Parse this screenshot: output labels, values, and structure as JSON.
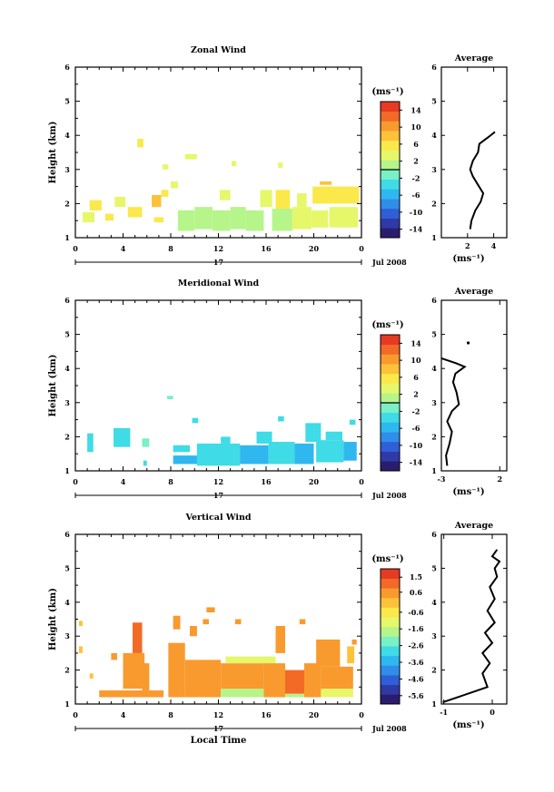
{
  "chart_data": [
    {
      "type": "heatmap",
      "title": "Zonal Wind",
      "ylabel": "Height (km)",
      "xticks": [
        "0",
        "4",
        "8",
        "12",
        "16",
        "20",
        "0"
      ],
      "yticks": [
        "1",
        "2",
        "3",
        "4",
        "5",
        "6"
      ],
      "xlim": [
        0,
        24
      ],
      "ylim": [
        1,
        6
      ],
      "day_label": "17",
      "date_label": "Jul 2008",
      "colorbar": {
        "unit": "(ms⁻¹)",
        "ticks": [
          "14",
          "10",
          "6",
          "2",
          "-2",
          "-6",
          "-10",
          "-14"
        ],
        "range": [
          -16,
          16
        ],
        "zero_line": 0
      },
      "cells": [
        {
          "t0": 0.6,
          "t1": 1.6,
          "h0": 1.45,
          "h1": 1.75,
          "v": 4
        },
        {
          "t0": 1.2,
          "t1": 2.2,
          "h0": 1.8,
          "h1": 2.1,
          "v": 5
        },
        {
          "t0": 2.5,
          "t1": 3.2,
          "h0": 1.5,
          "h1": 1.7,
          "v": 5
        },
        {
          "t0": 3.3,
          "t1": 4.2,
          "h0": 1.9,
          "h1": 2.2,
          "v": 4
        },
        {
          "t0": 4.4,
          "t1": 5.6,
          "h0": 1.6,
          "h1": 1.9,
          "v": 6
        },
        {
          "t0": 5.2,
          "t1": 5.7,
          "h0": 3.65,
          "h1": 3.9,
          "v": 6
        },
        {
          "t0": 6.4,
          "t1": 7.2,
          "h0": 1.9,
          "h1": 2.25,
          "v": 7
        },
        {
          "t0": 6.6,
          "t1": 7.4,
          "h0": 1.45,
          "h1": 1.6,
          "v": 5
        },
        {
          "t0": 7.2,
          "t1": 7.8,
          "h0": 2.2,
          "h1": 2.4,
          "v": 6
        },
        {
          "t0": 7.3,
          "t1": 7.8,
          "h0": 3.0,
          "h1": 3.15,
          "v": 3
        },
        {
          "t0": 8.0,
          "t1": 8.6,
          "h0": 2.45,
          "h1": 2.65,
          "v": 4
        },
        {
          "t0": 8.6,
          "t1": 10.0,
          "h0": 1.2,
          "h1": 1.8,
          "v": 1
        },
        {
          "t0": 9.2,
          "t1": 10.2,
          "h0": 3.3,
          "h1": 3.45,
          "v": 3
        },
        {
          "t0": 10.0,
          "t1": 11.5,
          "h0": 1.25,
          "h1": 1.9,
          "v": 2
        },
        {
          "t0": 11.5,
          "t1": 13.0,
          "h0": 1.2,
          "h1": 1.8,
          "v": 1
        },
        {
          "t0": 12.1,
          "t1": 13.0,
          "h0": 2.1,
          "h1": 2.4,
          "v": 3
        },
        {
          "t0": 13.0,
          "t1": 14.3,
          "h0": 1.25,
          "h1": 1.9,
          "v": 0
        },
        {
          "t0": 13.1,
          "t1": 13.5,
          "h0": 3.1,
          "h1": 3.25,
          "v": 3
        },
        {
          "t0": 14.3,
          "t1": 15.8,
          "h0": 1.2,
          "h1": 1.8,
          "v": 1
        },
        {
          "t0": 15.5,
          "t1": 16.5,
          "h0": 1.9,
          "h1": 2.4,
          "v": 4
        },
        {
          "t0": 16.5,
          "t1": 18.2,
          "h0": 1.2,
          "h1": 1.85,
          "v": 2
        },
        {
          "t0": 16.8,
          "t1": 18.0,
          "h0": 1.85,
          "h1": 2.4,
          "v": 5
        },
        {
          "t0": 17.0,
          "t1": 17.4,
          "h0": 3.05,
          "h1": 3.2,
          "v": 3
        },
        {
          "t0": 18.2,
          "t1": 19.8,
          "h0": 1.25,
          "h1": 1.9,
          "v": 3
        },
        {
          "t0": 18.6,
          "t1": 19.4,
          "h0": 1.9,
          "h1": 2.3,
          "v": 4
        },
        {
          "t0": 19.8,
          "t1": 21.2,
          "h0": 1.3,
          "h1": 1.8,
          "v": 4
        },
        {
          "t0": 19.9,
          "t1": 21.6,
          "h0": 2.0,
          "h1": 2.5,
          "v": 6
        },
        {
          "t0": 20.5,
          "t1": 21.5,
          "h0": 2.55,
          "h1": 2.65,
          "v": 7
        },
        {
          "t0": 21.3,
          "t1": 23.7,
          "h0": 1.3,
          "h1": 1.9,
          "v": 4
        },
        {
          "t0": 21.6,
          "t1": 23.8,
          "h0": 2.0,
          "h1": 2.5,
          "v": 5
        }
      ],
      "profile": {
        "title": "Average",
        "xticks": [
          "2",
          "4"
        ],
        "xlim": [
          0,
          5
        ],
        "unit": "(ms⁻¹)",
        "points": [
          [
            2.2,
            1.25
          ],
          [
            2.3,
            1.5
          ],
          [
            2.6,
            1.8
          ],
          [
            3.0,
            2.05
          ],
          [
            3.2,
            2.3
          ],
          [
            2.8,
            2.55
          ],
          [
            2.4,
            2.8
          ],
          [
            2.2,
            3.0
          ],
          [
            2.4,
            3.25
          ],
          [
            2.8,
            3.5
          ],
          [
            2.9,
            3.75
          ],
          [
            3.6,
            3.95
          ],
          [
            4.1,
            4.1
          ]
        ]
      }
    },
    {
      "type": "heatmap",
      "title": "Meridional Wind",
      "ylabel": "Height (km)",
      "xticks": [
        "0",
        "4",
        "8",
        "12",
        "16",
        "20",
        "0"
      ],
      "yticks": [
        "1",
        "2",
        "3",
        "4",
        "5",
        "6"
      ],
      "xlim": [
        0,
        24
      ],
      "ylim": [
        1,
        6
      ],
      "day_label": "17",
      "date_label": "Jul 2008",
      "colorbar": {
        "unit": "(ms⁻¹)",
        "ticks": [
          "14",
          "10",
          "6",
          "2",
          "-2",
          "-6",
          "-10",
          "-14"
        ],
        "range": [
          -16,
          16
        ],
        "zero_line": 0
      },
      "cells": [
        {
          "t0": 1.0,
          "t1": 1.5,
          "h0": 1.55,
          "h1": 2.1,
          "v": -3
        },
        {
          "t0": 3.2,
          "t1": 4.6,
          "h0": 1.7,
          "h1": 2.25,
          "v": -3
        },
        {
          "t0": 5.6,
          "t1": 6.2,
          "h0": 1.7,
          "h1": 1.95,
          "v": -2
        },
        {
          "t0": 5.7,
          "t1": 6.0,
          "h0": 1.15,
          "h1": 1.3,
          "v": -3
        },
        {
          "t0": 7.7,
          "t1": 8.2,
          "h0": 3.1,
          "h1": 3.2,
          "v": -2
        },
        {
          "t0": 8.2,
          "t1": 9.6,
          "h0": 1.55,
          "h1": 1.75,
          "v": -4
        },
        {
          "t0": 8.2,
          "t1": 10.5,
          "h0": 1.2,
          "h1": 1.45,
          "v": -5
        },
        {
          "t0": 9.8,
          "t1": 10.3,
          "h0": 2.4,
          "h1": 2.55,
          "v": -3
        },
        {
          "t0": 10.2,
          "t1": 13.8,
          "h0": 1.15,
          "h1": 1.8,
          "v": -4
        },
        {
          "t0": 12.2,
          "t1": 13.0,
          "h0": 1.8,
          "h1": 2.0,
          "v": -3
        },
        {
          "t0": 13.8,
          "t1": 16.2,
          "h0": 1.2,
          "h1": 1.75,
          "v": -5
        },
        {
          "t0": 15.2,
          "t1": 16.5,
          "h0": 1.8,
          "h1": 2.15,
          "v": -3
        },
        {
          "t0": 16.2,
          "t1": 18.4,
          "h0": 1.2,
          "h1": 1.85,
          "v": -4
        },
        {
          "t0": 17.0,
          "t1": 17.5,
          "h0": 2.45,
          "h1": 2.6,
          "v": -3
        },
        {
          "t0": 18.4,
          "t1": 20.0,
          "h0": 1.2,
          "h1": 1.8,
          "v": -5
        },
        {
          "t0": 19.3,
          "t1": 20.6,
          "h0": 1.85,
          "h1": 2.4,
          "v": -3
        },
        {
          "t0": 20.2,
          "t1": 22.5,
          "h0": 1.25,
          "h1": 1.9,
          "v": -4
        },
        {
          "t0": 21.0,
          "t1": 22.4,
          "h0": 1.9,
          "h1": 2.15,
          "v": -3
        },
        {
          "t0": 22.5,
          "t1": 23.6,
          "h0": 1.3,
          "h1": 1.85,
          "v": -5
        },
        {
          "t0": 23.0,
          "t1": 23.5,
          "h0": 2.35,
          "h1": 2.5,
          "v": -3
        }
      ],
      "profile": {
        "title": "Average",
        "xticks": [
          "-3",
          "2"
        ],
        "xlim": [
          -3,
          2.6
        ],
        "unit": "(ms⁻¹)",
        "points": [
          [
            -2.5,
            1.15
          ],
          [
            -2.6,
            1.45
          ],
          [
            -2.3,
            1.8
          ],
          [
            -2.1,
            2.15
          ],
          [
            -2.5,
            2.45
          ],
          [
            -2.1,
            2.75
          ],
          [
            -1.5,
            2.95
          ],
          [
            -1.7,
            3.3
          ],
          [
            -2.0,
            3.6
          ],
          [
            -1.8,
            3.85
          ],
          [
            -1.0,
            4.05
          ],
          [
            -1.7,
            4.15
          ],
          [
            -3.0,
            4.3
          ]
        ],
        "extra_points": [
          [
            -0.7,
            4.75
          ]
        ]
      }
    },
    {
      "type": "heatmap",
      "title": "Vertical Wind",
      "ylabel": "Height (km)",
      "xlabel": "Local Time",
      "xticks": [
        "0",
        "4",
        "8",
        "12",
        "16",
        "20",
        "0"
      ],
      "yticks": [
        "1",
        "2",
        "3",
        "4",
        "5",
        "6"
      ],
      "xlim": [
        0,
        24
      ],
      "ylim": [
        1,
        6
      ],
      "day_label": "17",
      "date_label": "Jul 2008",
      "colorbar": {
        "unit": "(ms⁻¹)",
        "ticks": [
          "1.5",
          "0.6",
          "-0.6",
          "-1.6",
          "-2.6",
          "-3.6",
          "-4.6",
          "-5.6"
        ],
        "range": [
          -6.1,
          2.0
        ]
      },
      "cells": [
        {
          "t0": 0.3,
          "t1": 0.6,
          "h0": 3.3,
          "h1": 3.45,
          "v": 0.2
        },
        {
          "t0": 0.3,
          "t1": 0.6,
          "h0": 2.5,
          "h1": 2.7,
          "v": 0.2
        },
        {
          "t0": 1.2,
          "t1": 1.5,
          "h0": 1.75,
          "h1": 1.9,
          "v": 0.2
        },
        {
          "t0": 2.0,
          "t1": 7.4,
          "h0": 1.2,
          "h1": 1.4,
          "v": 0.5
        },
        {
          "t0": 3.0,
          "t1": 3.5,
          "h0": 2.3,
          "h1": 2.5,
          "v": 0.3
        },
        {
          "t0": 4.0,
          "t1": 5.8,
          "h0": 1.45,
          "h1": 2.5,
          "v": 0.4
        },
        {
          "t0": 4.8,
          "t1": 5.6,
          "h0": 2.5,
          "h1": 3.4,
          "v": 0.9
        },
        {
          "t0": 5.6,
          "t1": 6.2,
          "h0": 1.4,
          "h1": 2.2,
          "v": 0.5
        },
        {
          "t0": 7.8,
          "t1": 9.2,
          "h0": 1.2,
          "h1": 2.8,
          "v": 0.5
        },
        {
          "t0": 8.2,
          "t1": 8.8,
          "h0": 3.2,
          "h1": 3.6,
          "v": 0.3
        },
        {
          "t0": 9.2,
          "t1": 12.2,
          "h0": 1.2,
          "h1": 2.3,
          "v": 0.6
        },
        {
          "t0": 9.6,
          "t1": 10.2,
          "h0": 3.0,
          "h1": 3.3,
          "v": 0.3
        },
        {
          "t0": 10.7,
          "t1": 11.2,
          "h0": 3.35,
          "h1": 3.5,
          "v": 0.3
        },
        {
          "t0": 11.0,
          "t1": 11.7,
          "h0": 3.7,
          "h1": 3.85,
          "v": 0.3
        },
        {
          "t0": 12.2,
          "t1": 15.8,
          "h0": 1.2,
          "h1": 1.45,
          "v": -1.6
        },
        {
          "t0": 12.2,
          "t1": 15.8,
          "h0": 1.45,
          "h1": 2.2,
          "v": 0.6
        },
        {
          "t0": 12.6,
          "t1": 16.8,
          "h0": 2.2,
          "h1": 2.4,
          "v": -1.0
        },
        {
          "t0": 13.4,
          "t1": 13.9,
          "h0": 3.35,
          "h1": 3.5,
          "v": 0.3
        },
        {
          "t0": 15.8,
          "t1": 17.6,
          "h0": 1.2,
          "h1": 2.2,
          "v": 0.4
        },
        {
          "t0": 16.8,
          "t1": 17.6,
          "h0": 2.5,
          "h1": 3.3,
          "v": 0.4
        },
        {
          "t0": 17.6,
          "t1": 19.2,
          "h0": 1.3,
          "h1": 2.0,
          "v": 0.9
        },
        {
          "t0": 17.6,
          "t1": 19.2,
          "h0": 1.2,
          "h1": 1.3,
          "v": -1.6
        },
        {
          "t0": 19.2,
          "t1": 20.6,
          "h0": 1.2,
          "h1": 2.2,
          "v": 0.6
        },
        {
          "t0": 18.8,
          "t1": 19.3,
          "h0": 3.35,
          "h1": 3.5,
          "v": 0.3
        },
        {
          "t0": 20.2,
          "t1": 22.2,
          "h0": 2.1,
          "h1": 2.9,
          "v": 0.5
        },
        {
          "t0": 20.6,
          "t1": 23.3,
          "h0": 1.2,
          "h1": 1.45,
          "v": -1.2
        },
        {
          "t0": 20.6,
          "t1": 23.3,
          "h0": 1.45,
          "h1": 2.1,
          "v": 0.5
        },
        {
          "t0": 22.8,
          "t1": 23.4,
          "h0": 2.2,
          "h1": 2.7,
          "v": 0.2
        },
        {
          "t0": 23.2,
          "t1": 23.6,
          "h0": 2.75,
          "h1": 2.9,
          "v": 0.3
        }
      ],
      "profile": {
        "title": "Average",
        "xticks": [
          "-1",
          "0"
        ],
        "xlim": [
          -1.05,
          0.3
        ],
        "unit": "(ms⁻¹)",
        "points": [
          [
            -1.02,
            1.05
          ],
          [
            -0.1,
            1.5
          ],
          [
            -0.2,
            1.9
          ],
          [
            -0.05,
            2.2
          ],
          [
            -0.2,
            2.5
          ],
          [
            0.0,
            2.8
          ],
          [
            -0.15,
            3.1
          ],
          [
            0.05,
            3.4
          ],
          [
            -0.1,
            3.75
          ],
          [
            0.05,
            4.1
          ],
          [
            -0.05,
            4.45
          ],
          [
            0.1,
            4.75
          ],
          [
            0.05,
            5.0
          ],
          [
            0.15,
            5.2
          ],
          [
            0.0,
            5.35
          ],
          [
            0.1,
            5.55
          ]
        ]
      }
    }
  ]
}
